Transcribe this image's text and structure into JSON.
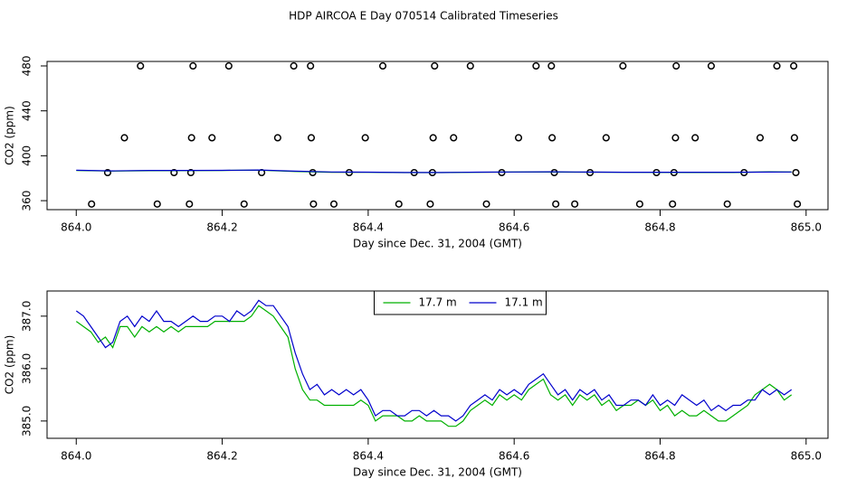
{
  "title": "HDP AIRCOA E  Day 070514  Calibrated Timeseries",
  "chart_data": [
    {
      "type": "scatter",
      "xlabel": "Day since Dec. 31, 2004 (GMT)",
      "ylabel": "CO2 (ppm)",
      "xlim": [
        863.96,
        865.03
      ],
      "ylim": [
        352,
        484
      ],
      "xticks": [
        {
          "value": 864,
          "label": "864.0"
        },
        864.2,
        864.4,
        864.6,
        864.8,
        {
          "value": 865,
          "label": "865.0"
        }
      ],
      "yticks": [
        360,
        400,
        440,
        480
      ],
      "series": [
        {
          "mark": "circle",
          "color": "#000000",
          "x": [
            864.088,
            864.16,
            864.209,
            864.298,
            864.321,
            864.42,
            864.491,
            864.54,
            864.63,
            864.651,
            864.749,
            864.822,
            864.87,
            864.96,
            864.983,
            864.066,
            864.158,
            864.186,
            864.276,
            864.322,
            864.396,
            864.489,
            864.517,
            864.606,
            864.652,
            864.726,
            864.821,
            864.848,
            864.937,
            864.984,
            864.043,
            864.134,
            864.157,
            864.254,
            864.324,
            864.374,
            864.463,
            864.488,
            864.583,
            864.655,
            864.704,
            864.795,
            864.819,
            864.915,
            864.986,
            864.021,
            864.111,
            864.155,
            864.23,
            864.325,
            864.353,
            864.442,
            864.485,
            864.562,
            864.657,
            864.683,
            864.772,
            864.817,
            864.892,
            864.988
          ],
          "values": [
            480,
            480,
            480,
            480,
            480,
            480,
            480,
            480,
            480,
            480,
            480,
            480,
            480,
            480,
            480,
            416,
            416,
            416,
            416,
            416,
            416,
            416,
            416,
            416,
            416,
            416,
            416,
            416,
            416,
            416,
            385,
            385,
            385,
            385,
            385,
            385,
            385,
            385,
            385,
            385,
            385,
            385,
            385,
            385,
            385,
            357,
            357,
            357,
            357,
            357,
            357,
            357,
            357,
            357,
            357,
            357,
            357,
            357,
            357,
            357
          ]
        },
        {
          "mark": "line",
          "color": "#00b000",
          "x": [
            864.0,
            864.05,
            864.1,
            864.15,
            864.2,
            864.25,
            864.3,
            864.35,
            864.4,
            864.45,
            864.5,
            864.55,
            864.6,
            864.65,
            864.7,
            864.75,
            864.8,
            864.85,
            864.9,
            864.95,
            864.98
          ],
          "values": [
            386.9,
            386.4,
            386.7,
            386.8,
            386.9,
            387.2,
            386.0,
            385.3,
            385.3,
            385.0,
            385.0,
            385.3,
            385.5,
            385.5,
            385.4,
            385.3,
            385.2,
            385.1,
            385.1,
            385.7,
            385.5
          ]
        },
        {
          "mark": "line",
          "color": "#0000cc",
          "x": [
            864.0,
            864.05,
            864.1,
            864.15,
            864.2,
            864.25,
            864.3,
            864.35,
            864.4,
            864.45,
            864.5,
            864.55,
            864.6,
            864.65,
            864.7,
            864.75,
            864.8,
            864.85,
            864.9,
            864.95,
            864.98
          ],
          "values": [
            387.1,
            386.5,
            386.9,
            386.9,
            387.0,
            387.3,
            386.3,
            385.6,
            385.4,
            385.1,
            385.1,
            385.4,
            385.6,
            385.7,
            385.5,
            385.3,
            385.3,
            385.3,
            385.3,
            385.5,
            385.6
          ]
        }
      ]
    },
    {
      "type": "line",
      "xlabel": "Day since Dec. 31, 2004 (GMT)",
      "ylabel": "CO2 (ppm)",
      "xlim": [
        863.96,
        865.03
      ],
      "ylim": [
        384.67,
        387.48
      ],
      "xticks": [
        {
          "value": 864,
          "label": "864.0"
        },
        864.2,
        864.4,
        864.6,
        864.8,
        {
          "value": 865,
          "label": "865.0"
        }
      ],
      "yticks": [
        {
          "value": 385,
          "label": "385.0"
        },
        {
          "value": 386,
          "label": "386.0"
        },
        {
          "value": 387,
          "label": "387.0"
        }
      ],
      "legend": "top",
      "x": [
        864.0,
        864.01,
        864.02,
        864.03,
        864.04,
        864.05,
        864.06,
        864.07,
        864.08,
        864.09,
        864.1,
        864.11,
        864.12,
        864.13,
        864.14,
        864.15,
        864.16,
        864.17,
        864.18,
        864.19,
        864.2,
        864.21,
        864.22,
        864.23,
        864.24,
        864.25,
        864.26,
        864.27,
        864.28,
        864.29,
        864.3,
        864.31,
        864.32,
        864.33,
        864.34,
        864.35,
        864.36,
        864.37,
        864.38,
        864.39,
        864.4,
        864.41,
        864.42,
        864.43,
        864.44,
        864.45,
        864.46,
        864.47,
        864.48,
        864.49,
        864.5,
        864.51,
        864.52,
        864.53,
        864.54,
        864.55,
        864.56,
        864.57,
        864.58,
        864.59,
        864.6,
        864.61,
        864.62,
        864.63,
        864.64,
        864.65,
        864.66,
        864.67,
        864.68,
        864.69,
        864.7,
        864.71,
        864.72,
        864.73,
        864.74,
        864.75,
        864.76,
        864.77,
        864.78,
        864.79,
        864.8,
        864.81,
        864.82,
        864.83,
        864.84,
        864.85,
        864.86,
        864.87,
        864.88,
        864.89,
        864.9,
        864.91,
        864.92,
        864.93,
        864.94,
        864.95,
        864.96,
        864.97,
        864.98
      ],
      "series": [
        {
          "name": "17.7 m",
          "color": "#00b000",
          "values": [
            386.9,
            386.8,
            386.7,
            386.5,
            386.6,
            386.4,
            386.8,
            386.8,
            386.6,
            386.8,
            386.7,
            386.8,
            386.7,
            386.8,
            386.7,
            386.8,
            386.8,
            386.8,
            386.8,
            386.9,
            386.9,
            386.9,
            386.9,
            386.9,
            387.0,
            387.2,
            387.1,
            387.0,
            386.8,
            386.6,
            386.0,
            385.6,
            385.4,
            385.4,
            385.3,
            385.3,
            385.3,
            385.3,
            385.3,
            385.4,
            385.3,
            385.0,
            385.1,
            385.1,
            385.1,
            385.0,
            385.0,
            385.1,
            385.0,
            385.0,
            385.0,
            384.9,
            384.9,
            385.0,
            385.2,
            385.3,
            385.4,
            385.3,
            385.5,
            385.4,
            385.5,
            385.4,
            385.6,
            385.7,
            385.8,
            385.5,
            385.4,
            385.5,
            385.3,
            385.5,
            385.4,
            385.5,
            385.3,
            385.4,
            385.2,
            385.3,
            385.3,
            385.4,
            385.3,
            385.4,
            385.2,
            385.3,
            385.1,
            385.2,
            385.1,
            385.1,
            385.2,
            385.1,
            385.0,
            385.0,
            385.1,
            385.2,
            385.3,
            385.5,
            385.6,
            385.7,
            385.6,
            385.4,
            385.5
          ]
        },
        {
          "name": "17.1 m",
          "color": "#0000cc",
          "values": [
            387.1,
            387.0,
            386.8,
            386.6,
            386.4,
            386.5,
            386.9,
            387.0,
            386.8,
            387.0,
            386.9,
            387.1,
            386.9,
            386.9,
            386.8,
            386.9,
            387.0,
            386.9,
            386.9,
            387.0,
            387.0,
            386.9,
            387.1,
            387.0,
            387.1,
            387.3,
            387.2,
            387.2,
            387.0,
            386.8,
            386.3,
            385.9,
            385.6,
            385.7,
            385.5,
            385.6,
            385.5,
            385.6,
            385.5,
            385.6,
            385.4,
            385.1,
            385.2,
            385.2,
            385.1,
            385.1,
            385.2,
            385.2,
            385.1,
            385.2,
            385.1,
            385.1,
            385.0,
            385.1,
            385.3,
            385.4,
            385.5,
            385.4,
            385.6,
            385.5,
            385.6,
            385.5,
            385.7,
            385.8,
            385.9,
            385.7,
            385.5,
            385.6,
            385.4,
            385.6,
            385.5,
            385.6,
            385.4,
            385.5,
            385.3,
            385.3,
            385.4,
            385.4,
            385.3,
            385.5,
            385.3,
            385.4,
            385.3,
            385.5,
            385.4,
            385.3,
            385.4,
            385.2,
            385.3,
            385.2,
            385.3,
            385.3,
            385.4,
            385.4,
            385.6,
            385.5,
            385.6,
            385.5,
            385.6
          ]
        }
      ]
    }
  ]
}
